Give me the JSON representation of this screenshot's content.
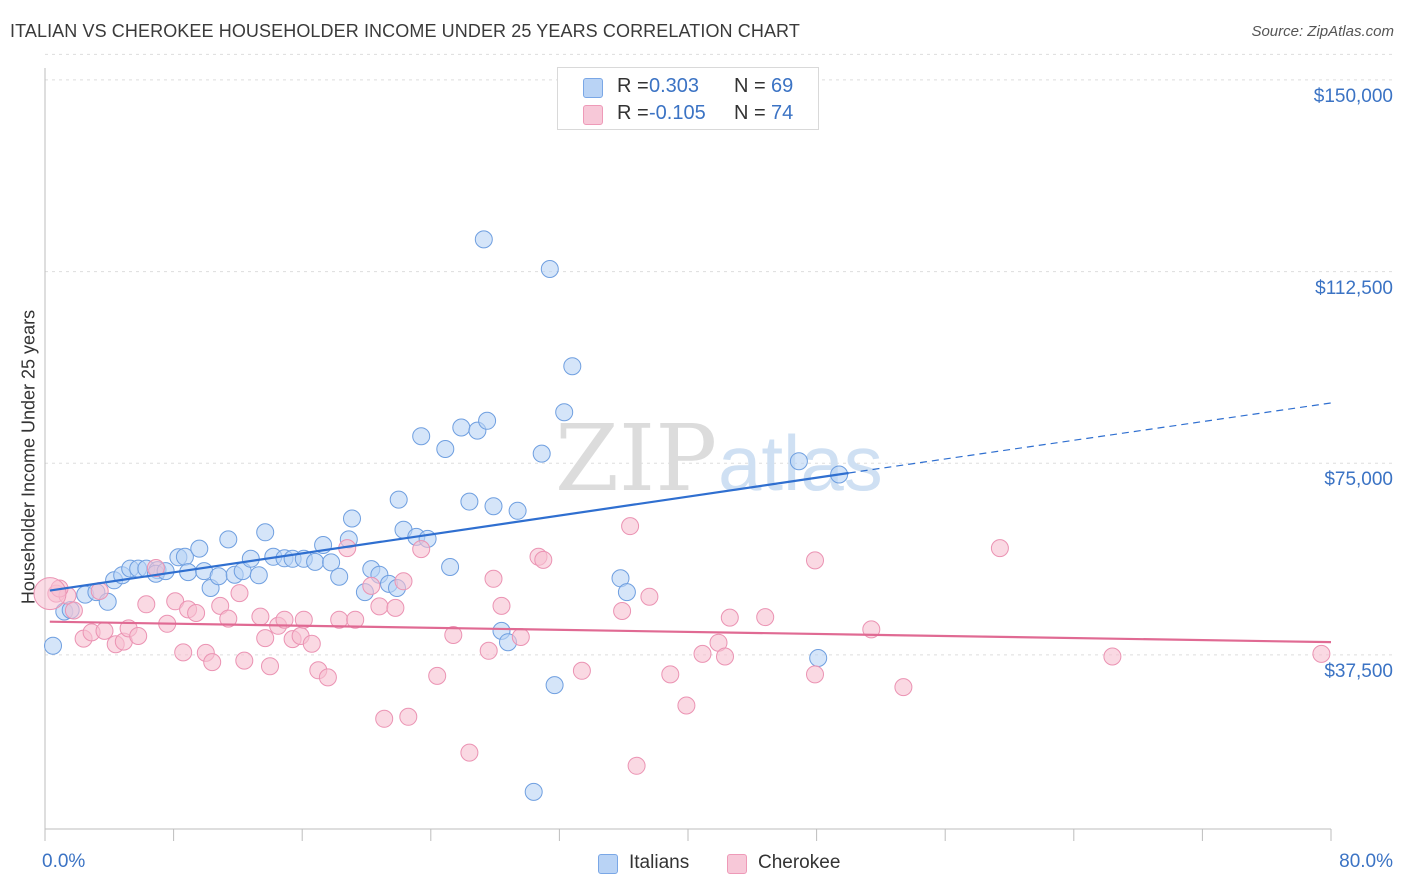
{
  "title": "ITALIAN VS CHEROKEE HOUSEHOLDER INCOME UNDER 25 YEARS CORRELATION CHART",
  "source": "Source: ZipAtlas.com",
  "watermark": {
    "zip": "ZIP",
    "atlas": "atlas"
  },
  "colors": {
    "blue": "#3c78d8",
    "blue_fill": "#b9d3f5",
    "blue_line": "#2f6fd0",
    "pink": "#e86a96",
    "pink_fill": "#f7bfd1",
    "pink_line": "#e06a93",
    "tick_text": "#3b73c4",
    "grid": "#dddddd"
  },
  "legend": {
    "r_label": "R =",
    "n_label": "N =",
    "rows": [
      {
        "series": "Italians",
        "r": "0.303",
        "n": "69"
      },
      {
        "series": "Cherokee",
        "r": "-0.105",
        "n": "74"
      }
    ]
  },
  "bottom_legend": [
    "Italians",
    "Cherokee"
  ],
  "chart_data": {
    "type": "scatter",
    "title": "ITALIAN VS CHEROKEE HOUSEHOLDER INCOME UNDER 25 YEARS CORRELATION CHART",
    "xlabel": "",
    "ylabel": "Householder Income Under 25 years",
    "xlim": [
      0,
      80
    ],
    "ylim": [
      0,
      155000
    ],
    "x_tick_labels": [
      "0.0%",
      "80.0%"
    ],
    "y_ticks": [
      37500,
      75000,
      112500,
      150000
    ],
    "y_tick_labels": [
      "$37,500",
      "$75,000",
      "$112,500",
      "$150,000"
    ],
    "grid": true,
    "legend_position": "top-center",
    "series": [
      {
        "name": "Italians",
        "color": "#3c78d8",
        "trend": {
          "x": [
            0.3,
            50.0
          ],
          "y": [
            50100,
            73100
          ],
          "dashed_to": [
            80.0,
            86800
          ]
        },
        "points": [
          [
            0.5,
            39300
          ],
          [
            1.2,
            46000
          ],
          [
            1.6,
            46300
          ],
          [
            2.5,
            49300
          ],
          [
            3.2,
            49800
          ],
          [
            3.9,
            47900
          ],
          [
            4.3,
            52100
          ],
          [
            4.8,
            53100
          ],
          [
            5.3,
            54400
          ],
          [
            5.8,
            54400
          ],
          [
            6.3,
            54400
          ],
          [
            7.0,
            54100
          ],
          [
            6.9,
            53400
          ],
          [
            7.5,
            53900
          ],
          [
            8.3,
            56600
          ],
          [
            8.7,
            56700
          ],
          [
            8.9,
            53700
          ],
          [
            9.6,
            58300
          ],
          [
            9.9,
            53900
          ],
          [
            10.3,
            50600
          ],
          [
            10.8,
            52900
          ],
          [
            11.4,
            60100
          ],
          [
            11.8,
            53200
          ],
          [
            12.3,
            53900
          ],
          [
            12.8,
            56300
          ],
          [
            13.3,
            53100
          ],
          [
            13.7,
            61500
          ],
          [
            14.2,
            56700
          ],
          [
            14.9,
            56400
          ],
          [
            15.4,
            56300
          ],
          [
            16.1,
            56300
          ],
          [
            16.8,
            55700
          ],
          [
            17.3,
            59000
          ],
          [
            17.8,
            55600
          ],
          [
            18.3,
            52800
          ],
          [
            18.9,
            60100
          ],
          [
            19.1,
            64200
          ],
          [
            19.9,
            49800
          ],
          [
            20.3,
            54300
          ],
          [
            20.8,
            53200
          ],
          [
            21.4,
            51400
          ],
          [
            21.9,
            50600
          ],
          [
            22.0,
            67900
          ],
          [
            22.3,
            62000
          ],
          [
            23.1,
            60600
          ],
          [
            23.8,
            60200
          ],
          [
            23.4,
            80300
          ],
          [
            24.9,
            77800
          ],
          [
            25.2,
            54700
          ],
          [
            25.9,
            82000
          ],
          [
            26.4,
            67500
          ],
          [
            26.9,
            81400
          ],
          [
            27.5,
            83300
          ],
          [
            27.3,
            118800
          ],
          [
            27.9,
            66600
          ],
          [
            28.4,
            42200
          ],
          [
            29.4,
            65700
          ],
          [
            30.4,
            10700
          ],
          [
            30.9,
            76900
          ],
          [
            31.4,
            113000
          ],
          [
            31.7,
            31600
          ],
          [
            32.3,
            85000
          ],
          [
            32.8,
            94000
          ],
          [
            28.8,
            40000
          ],
          [
            35.8,
            52500
          ],
          [
            36.2,
            49800
          ],
          [
            48.1,
            36900
          ],
          [
            46.9,
            75400
          ],
          [
            49.4,
            72800
          ]
        ]
      },
      {
        "name": "Cherokee",
        "color": "#e86a96",
        "trend": {
          "x": [
            0.3,
            80.0
          ],
          "y": [
            44000,
            40000
          ]
        },
        "points": [
          [
            0.7,
            49500
          ],
          [
            1.4,
            49100
          ],
          [
            1.8,
            46200
          ],
          [
            2.4,
            40700
          ],
          [
            2.9,
            41900
          ],
          [
            3.4,
            50000
          ],
          [
            3.7,
            42200
          ],
          [
            4.4,
            39600
          ],
          [
            4.9,
            40100
          ],
          [
            5.2,
            42700
          ],
          [
            5.8,
            41200
          ],
          [
            6.3,
            47400
          ],
          [
            6.9,
            54500
          ],
          [
            7.6,
            43600
          ],
          [
            8.1,
            48000
          ],
          [
            8.6,
            38000
          ],
          [
            8.9,
            46400
          ],
          [
            9.4,
            45700
          ],
          [
            10.0,
            37900
          ],
          [
            10.4,
            36100
          ],
          [
            10.9,
            47100
          ],
          [
            11.4,
            44600
          ],
          [
            12.1,
            49600
          ],
          [
            12.4,
            36400
          ],
          [
            13.4,
            45000
          ],
          [
            13.7,
            40800
          ],
          [
            14.0,
            35300
          ],
          [
            14.5,
            43200
          ],
          [
            14.9,
            44400
          ],
          [
            15.4,
            40600
          ],
          [
            15.9,
            41200
          ],
          [
            16.1,
            44400
          ],
          [
            16.6,
            39700
          ],
          [
            17.0,
            34500
          ],
          [
            17.6,
            33100
          ],
          [
            18.3,
            44400
          ],
          [
            18.8,
            58400
          ],
          [
            19.3,
            44400
          ],
          [
            20.3,
            51000
          ],
          [
            20.8,
            47000
          ],
          [
            21.1,
            25000
          ],
          [
            21.8,
            46700
          ],
          [
            22.3,
            51900
          ],
          [
            22.6,
            25400
          ],
          [
            23.4,
            58200
          ],
          [
            24.4,
            33400
          ],
          [
            25.4,
            41400
          ],
          [
            26.4,
            18400
          ],
          [
            27.6,
            38300
          ],
          [
            27.9,
            52400
          ],
          [
            28.4,
            47100
          ],
          [
            29.6,
            41000
          ],
          [
            30.7,
            56700
          ],
          [
            31.0,
            56100
          ],
          [
            33.4,
            34400
          ],
          [
            35.9,
            46100
          ],
          [
            36.4,
            62700
          ],
          [
            36.8,
            15800
          ],
          [
            37.6,
            48900
          ],
          [
            38.9,
            33700
          ],
          [
            39.9,
            27600
          ],
          [
            40.9,
            37700
          ],
          [
            41.9,
            39900
          ],
          [
            42.3,
            37200
          ],
          [
            42.6,
            44800
          ],
          [
            44.8,
            44900
          ],
          [
            47.9,
            56000
          ],
          [
            47.9,
            33700
          ],
          [
            51.4,
            42500
          ],
          [
            53.4,
            31200
          ],
          [
            59.4,
            58400
          ],
          [
            66.4,
            37200
          ],
          [
            79.4,
            37700
          ],
          [
            0.9,
            50500
          ]
        ]
      }
    ]
  }
}
